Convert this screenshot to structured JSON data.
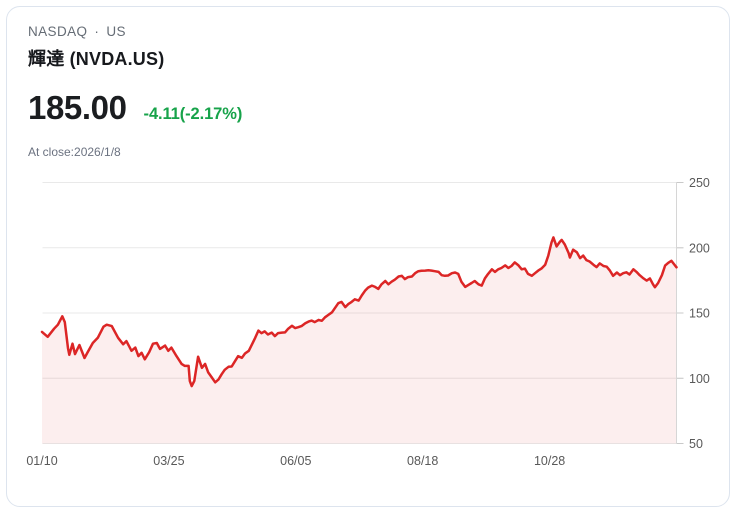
{
  "header": {
    "exchange": "NASDAQ",
    "separator": "·",
    "market": "US",
    "title": "輝達 (NVDA.US)"
  },
  "quote": {
    "price": "185.00",
    "change": "-4.11(-2.17%)",
    "at_close": "At close:2026/1/8"
  },
  "colors": {
    "change_green": "#17a34a",
    "line_red": "#dc2626",
    "area_fill": "rgba(220,38,38,0.08)",
    "gridline": "#e9e9e9",
    "tick": "#c9c9c9",
    "axis_line": "#d6d6d6",
    "axis_text": "#595959"
  },
  "chart_data": {
    "type": "area",
    "title": "NVDA.US 1-year closing price",
    "xlabel": "",
    "ylabel": "",
    "ylim": [
      50,
      250
    ],
    "yticks": [
      250,
      200,
      150,
      100,
      50
    ],
    "grid": "horizontal",
    "legend": "none",
    "xticks": [
      {
        "label": "01/10",
        "pos": 0.0
      },
      {
        "label": "03/25",
        "pos": 0.2
      },
      {
        "label": "06/05",
        "pos": 0.4
      },
      {
        "label": "08/18",
        "pos": 0.6
      },
      {
        "label": "10/28",
        "pos": 0.8
      }
    ],
    "series": [
      {
        "name": "NVDA.US",
        "points": [
          [
            0.0,
            135.5
          ],
          [
            0.009,
            131.8
          ],
          [
            0.019,
            138
          ],
          [
            0.025,
            141
          ],
          [
            0.032,
            147.5
          ],
          [
            0.036,
            143
          ],
          [
            0.041,
            123
          ],
          [
            0.043,
            118
          ],
          [
            0.048,
            126.5
          ],
          [
            0.052,
            118.5
          ],
          [
            0.059,
            125.5
          ],
          [
            0.067,
            115.5
          ],
          [
            0.072,
            120
          ],
          [
            0.08,
            127
          ],
          [
            0.088,
            131
          ],
          [
            0.097,
            139.5
          ],
          [
            0.102,
            141
          ],
          [
            0.11,
            140
          ],
          [
            0.12,
            131
          ],
          [
            0.128,
            126
          ],
          [
            0.133,
            128.5
          ],
          [
            0.141,
            121
          ],
          [
            0.147,
            123.5
          ],
          [
            0.152,
            117
          ],
          [
            0.157,
            119.5
          ],
          [
            0.162,
            114.5
          ],
          [
            0.169,
            120
          ],
          [
            0.175,
            126.5
          ],
          [
            0.181,
            127
          ],
          [
            0.186,
            122.5
          ],
          [
            0.194,
            125
          ],
          [
            0.199,
            121
          ],
          [
            0.204,
            123.5
          ],
          [
            0.212,
            117
          ],
          [
            0.22,
            111
          ],
          [
            0.225,
            109.5
          ],
          [
            0.231,
            109.5
          ],
          [
            0.233,
            98
          ],
          [
            0.236,
            94
          ],
          [
            0.24,
            98
          ],
          [
            0.246,
            116.5
          ],
          [
            0.252,
            108
          ],
          [
            0.257,
            111
          ],
          [
            0.262,
            104.5
          ],
          [
            0.267,
            101
          ],
          [
            0.273,
            96.9
          ],
          [
            0.278,
            99
          ],
          [
            0.283,
            103
          ],
          [
            0.288,
            106.5
          ],
          [
            0.294,
            108.8
          ],
          [
            0.299,
            109
          ],
          [
            0.304,
            113
          ],
          [
            0.309,
            116.9
          ],
          [
            0.315,
            115.7
          ],
          [
            0.32,
            119
          ],
          [
            0.326,
            121
          ],
          [
            0.33,
            125
          ],
          [
            0.336,
            131
          ],
          [
            0.341,
            136.5
          ],
          [
            0.346,
            134.5
          ],
          [
            0.351,
            135.9
          ],
          [
            0.356,
            133.5
          ],
          [
            0.362,
            135
          ],
          [
            0.367,
            132.3
          ],
          [
            0.372,
            134.6
          ],
          [
            0.378,
            135
          ],
          [
            0.383,
            135.1
          ],
          [
            0.388,
            138
          ],
          [
            0.394,
            140.2
          ],
          [
            0.399,
            138.4
          ],
          [
            0.404,
            139.1
          ],
          [
            0.409,
            140
          ],
          [
            0.415,
            142.2
          ],
          [
            0.42,
            143.4
          ],
          [
            0.425,
            144.2
          ],
          [
            0.43,
            143
          ],
          [
            0.436,
            144.7
          ],
          [
            0.441,
            144
          ],
          [
            0.446,
            146.7
          ],
          [
            0.451,
            148.5
          ],
          [
            0.457,
            150.5
          ],
          [
            0.462,
            154
          ],
          [
            0.467,
            157.5
          ],
          [
            0.472,
            158.5
          ],
          [
            0.478,
            154.5
          ],
          [
            0.483,
            157
          ],
          [
            0.488,
            158.5
          ],
          [
            0.493,
            160.5
          ],
          [
            0.499,
            159.5
          ],
          [
            0.504,
            163.5
          ],
          [
            0.509,
            167
          ],
          [
            0.514,
            169.5
          ],
          [
            0.52,
            171
          ],
          [
            0.525,
            170
          ],
          [
            0.53,
            168.5
          ],
          [
            0.535,
            172
          ],
          [
            0.541,
            174.5
          ],
          [
            0.546,
            172
          ],
          [
            0.551,
            174
          ],
          [
            0.556,
            175.5
          ],
          [
            0.562,
            178
          ],
          [
            0.567,
            178.5
          ],
          [
            0.572,
            176
          ],
          [
            0.577,
            177.5
          ],
          [
            0.583,
            178
          ],
          [
            0.588,
            180.5
          ],
          [
            0.593,
            182
          ],
          [
            0.598,
            182.3
          ],
          [
            0.604,
            182.5
          ],
          [
            0.609,
            182.7
          ],
          [
            0.614,
            182.5
          ],
          [
            0.619,
            182
          ],
          [
            0.625,
            181.5
          ],
          [
            0.63,
            179
          ],
          [
            0.635,
            178.5
          ],
          [
            0.64,
            178.7
          ],
          [
            0.646,
            180.5
          ],
          [
            0.651,
            181
          ],
          [
            0.656,
            180
          ],
          [
            0.661,
            174
          ],
          [
            0.667,
            170
          ],
          [
            0.672,
            171.5
          ],
          [
            0.677,
            173
          ],
          [
            0.682,
            174.5
          ],
          [
            0.688,
            172
          ],
          [
            0.693,
            171
          ],
          [
            0.698,
            176.5
          ],
          [
            0.703,
            180
          ],
          [
            0.709,
            183.5
          ],
          [
            0.714,
            181.5
          ],
          [
            0.719,
            183.5
          ],
          [
            0.724,
            184.5
          ],
          [
            0.73,
            186.5
          ],
          [
            0.735,
            184.5
          ],
          [
            0.74,
            186
          ],
          [
            0.745,
            188.8
          ],
          [
            0.751,
            186.5
          ],
          [
            0.756,
            183.5
          ],
          [
            0.761,
            184
          ],
          [
            0.766,
            180
          ],
          [
            0.772,
            178.5
          ],
          [
            0.777,
            180.5
          ],
          [
            0.782,
            182.5
          ],
          [
            0.787,
            184
          ],
          [
            0.793,
            187
          ],
          [
            0.798,
            194
          ],
          [
            0.803,
            204
          ],
          [
            0.806,
            207.9
          ],
          [
            0.808,
            205
          ],
          [
            0.811,
            201
          ],
          [
            0.816,
            204.5
          ],
          [
            0.819,
            206
          ],
          [
            0.824,
            202.5
          ],
          [
            0.83,
            196
          ],
          [
            0.832,
            192.5
          ],
          [
            0.837,
            198.5
          ],
          [
            0.843,
            196.5
          ],
          [
            0.848,
            192
          ],
          [
            0.853,
            194
          ],
          [
            0.858,
            190.5
          ],
          [
            0.863,
            189.5
          ],
          [
            0.869,
            187
          ],
          [
            0.874,
            185.2
          ],
          [
            0.879,
            188
          ],
          [
            0.885,
            186
          ],
          [
            0.89,
            185.5
          ],
          [
            0.895,
            182.5
          ],
          [
            0.9,
            178.5
          ],
          [
            0.906,
            181
          ],
          [
            0.911,
            179
          ],
          [
            0.916,
            180.5
          ],
          [
            0.921,
            181.2
          ],
          [
            0.926,
            179.5
          ],
          [
            0.932,
            183.5
          ],
          [
            0.937,
            181.5
          ],
          [
            0.942,
            179
          ],
          [
            0.948,
            176.5
          ],
          [
            0.953,
            174.8
          ],
          [
            0.958,
            176.5
          ],
          [
            0.963,
            172
          ],
          [
            0.966,
            169.8
          ],
          [
            0.971,
            173
          ],
          [
            0.977,
            179
          ],
          [
            0.982,
            186.3
          ],
          [
            0.987,
            188.5
          ],
          [
            0.992,
            190
          ],
          [
            0.996,
            187.5
          ],
          [
            1.0,
            185
          ]
        ]
      }
    ]
  }
}
